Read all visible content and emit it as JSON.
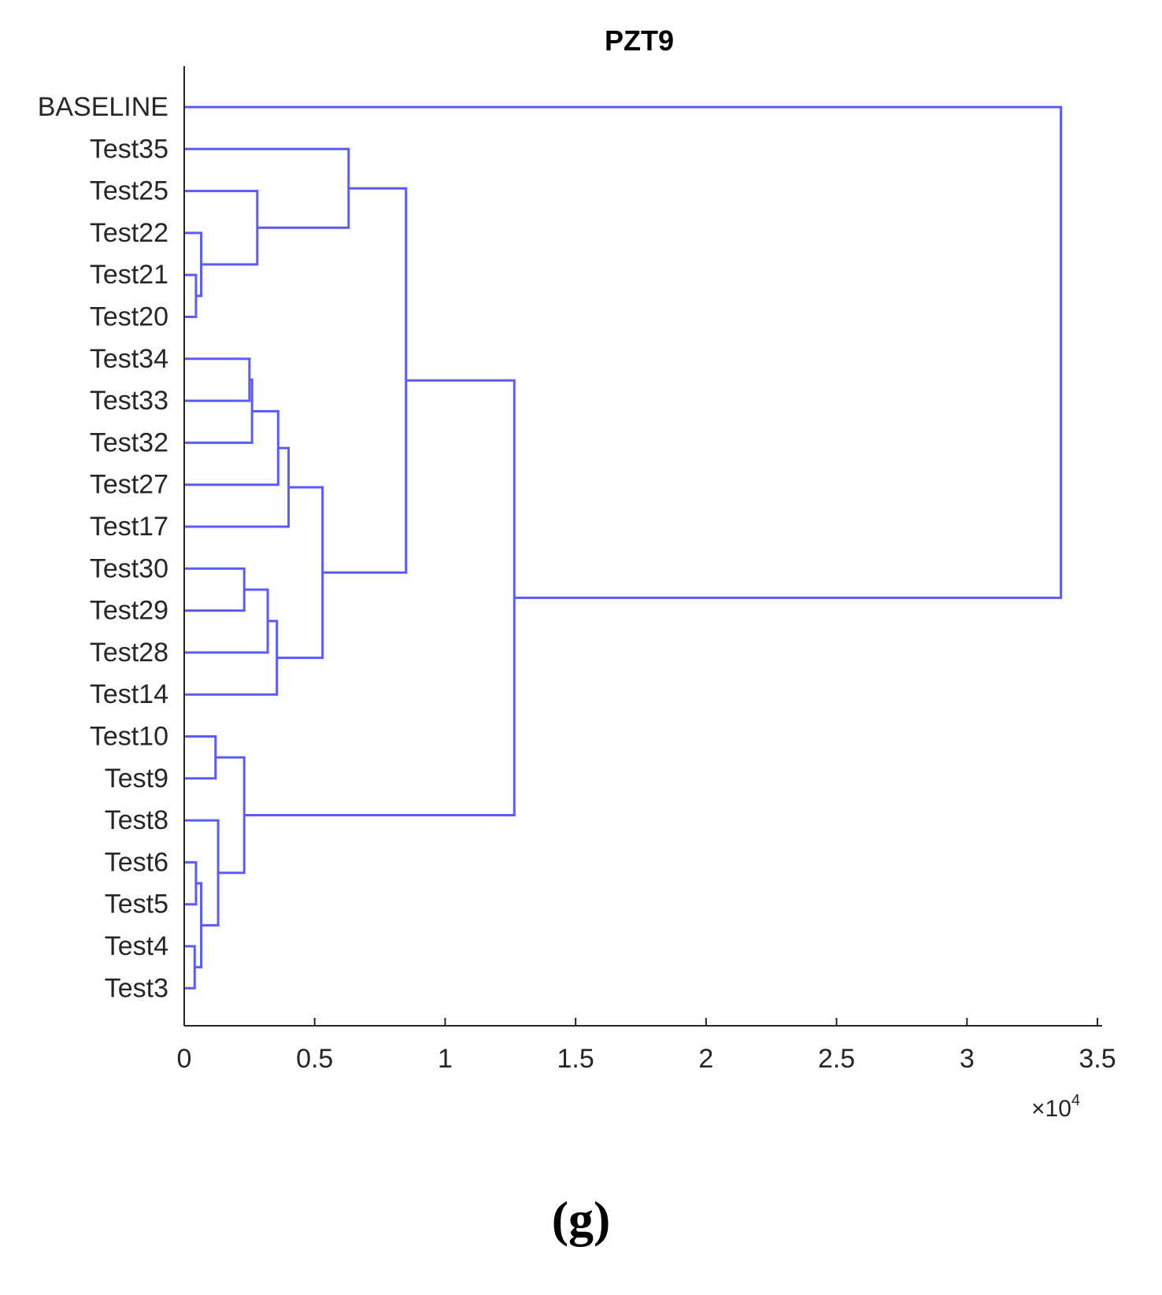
{
  "chart_data": {
    "type": "dendrogram",
    "title": "PZT9",
    "xlabel": "",
    "ylabel": "",
    "x_multiplier": "×10",
    "x_multiplier_exponent": "4",
    "xlim": [
      0,
      3.5
    ],
    "xticks": [
      "0",
      "0.5",
      "1",
      "1.5",
      "2",
      "2.5",
      "3",
      "3.5"
    ],
    "leaves": [
      "BASELINE",
      "Test35",
      "Test25",
      "Test22",
      "Test21",
      "Test20",
      "Test34",
      "Test33",
      "Test32",
      "Test27",
      "Test17",
      "Test30",
      "Test29",
      "Test28",
      "Test14",
      "Test10",
      "Test9",
      "Test8",
      "Test6",
      "Test5",
      "Test4",
      "Test3"
    ],
    "merges": [
      {
        "id": "c1",
        "children": [
          "Test21",
          "Test20"
        ],
        "height": 0.045
      },
      {
        "id": "c2",
        "children": [
          "Test22",
          "c1"
        ],
        "height": 0.065
      },
      {
        "id": "c3",
        "children": [
          "Test25",
          "c2"
        ],
        "height": 0.28
      },
      {
        "id": "c4",
        "children": [
          "Test35",
          "c3"
        ],
        "height": 0.63
      },
      {
        "id": "c5",
        "children": [
          "Test34",
          "Test33"
        ],
        "height": 0.25
      },
      {
        "id": "c6",
        "children": [
          "c5",
          "Test32"
        ],
        "height": 0.26
      },
      {
        "id": "c7",
        "children": [
          "c6",
          "Test27"
        ],
        "height": 0.36
      },
      {
        "id": "c8",
        "children": [
          "c7",
          "Test17"
        ],
        "height": 0.4
      },
      {
        "id": "c9",
        "children": [
          "Test30",
          "Test29"
        ],
        "height": 0.23
      },
      {
        "id": "c10",
        "children": [
          "c9",
          "Test28"
        ],
        "height": 0.32
      },
      {
        "id": "c11",
        "children": [
          "c10",
          "Test14"
        ],
        "height": 0.355
      },
      {
        "id": "c12",
        "children": [
          "c8",
          "c11"
        ],
        "height": 0.53
      },
      {
        "id": "c13",
        "children": [
          "c4",
          "c12"
        ],
        "height": 0.85
      },
      {
        "id": "c14",
        "children": [
          "Test10",
          "Test9"
        ],
        "height": 0.12
      },
      {
        "id": "c15",
        "children": [
          "Test6",
          "Test5"
        ],
        "height": 0.045
      },
      {
        "id": "c16",
        "children": [
          "Test4",
          "Test3"
        ],
        "height": 0.04
      },
      {
        "id": "c17",
        "children": [
          "c15",
          "c16"
        ],
        "height": 0.065
      },
      {
        "id": "c18",
        "children": [
          "Test8",
          "c17"
        ],
        "height": 0.13
      },
      {
        "id": "c19",
        "children": [
          "c14",
          "c18"
        ],
        "height": 0.23
      },
      {
        "id": "c20",
        "children": [
          "c13",
          "c19"
        ],
        "height": 1.265
      },
      {
        "id": "c21",
        "children": [
          "BASELINE",
          "c20"
        ],
        "height": 3.36
      }
    ],
    "line_color": "#5a5aff",
    "axis_color": "#262626",
    "grid": false
  },
  "caption": "(g)"
}
